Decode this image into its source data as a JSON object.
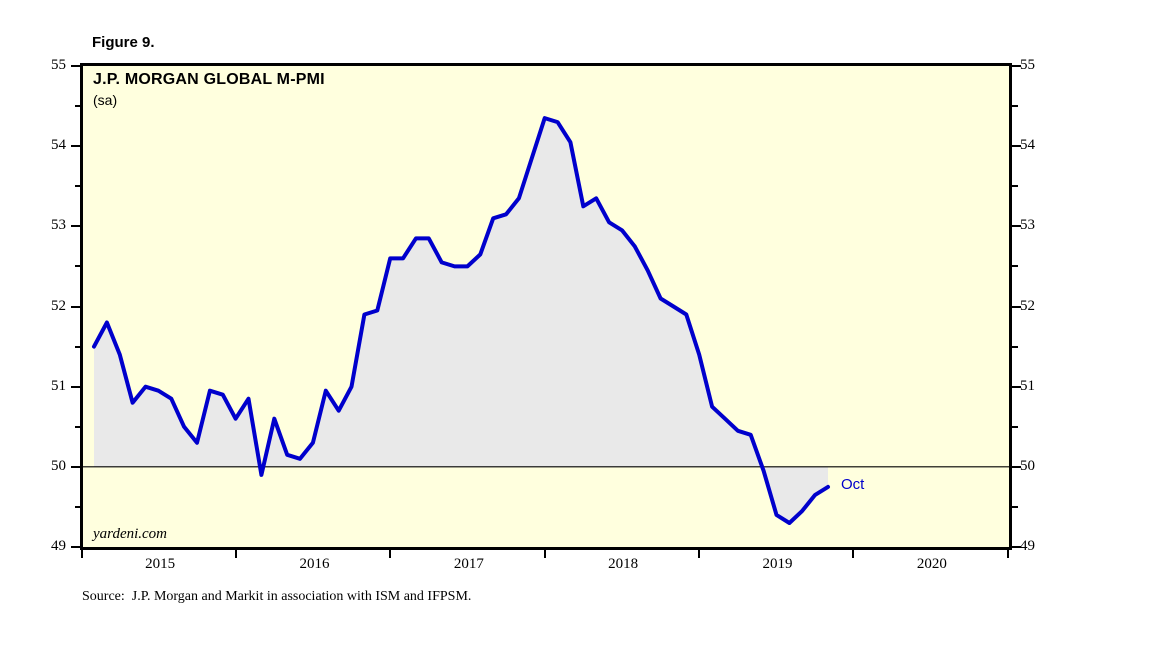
{
  "figure_label": "Figure 9.",
  "chart": {
    "title": "J.P. MORGAN GLOBAL M-PMI",
    "subtitle": "(sa)",
    "watermark": "yardeni.com",
    "last_point_label": "Oct",
    "source": "Source:  J.P. Morgan and Markit in association with ISM and IFPSM."
  },
  "chart_data": {
    "type": "line",
    "title": "J.P. MORGAN GLOBAL M-PMI (sa)",
    "x_unit": "month",
    "x_start": "2015-01",
    "x_end": "2019-10",
    "x_tick_labels": [
      "2015",
      "2016",
      "2017",
      "2018",
      "2019",
      "2020"
    ],
    "x_axis_span_years": 6,
    "ylim": [
      49,
      55
    ],
    "y_ticks_major": [
      49,
      50,
      51,
      52,
      53,
      54,
      55
    ],
    "y_ticks_minor": [
      49.5,
      50.5,
      51.5,
      52.5,
      53.5,
      54.5
    ],
    "baseline": 50,
    "grid": "off",
    "annotation": {
      "label": "Oct",
      "value": 49.75
    },
    "series": [
      {
        "name": "J.P. Morgan Global M-PMI (sa)",
        "monthly_values": [
          51.5,
          51.8,
          51.4,
          50.8,
          51.0,
          50.95,
          50.85,
          50.5,
          50.3,
          50.95,
          50.9,
          50.6,
          50.85,
          49.9,
          50.6,
          50.15,
          50.1,
          50.3,
          50.95,
          50.7,
          51.0,
          51.9,
          51.95,
          52.6,
          52.6,
          52.85,
          52.85,
          52.55,
          52.5,
          52.5,
          52.65,
          53.1,
          53.15,
          53.35,
          53.85,
          54.35,
          54.3,
          54.05,
          53.25,
          53.35,
          53.05,
          52.95,
          52.75,
          52.45,
          52.1,
          52.0,
          51.9,
          51.4,
          50.75,
          50.6,
          50.45,
          50.4,
          49.95,
          49.4,
          49.3,
          49.45,
          49.65,
          49.75
        ]
      }
    ],
    "colors": {
      "line": "#0000CC",
      "fill": "#E9E9E9",
      "plot_background": "#FFFFDE",
      "baseline": "#000000",
      "frame": "#000000",
      "annotation_text": "#0000CC"
    }
  }
}
